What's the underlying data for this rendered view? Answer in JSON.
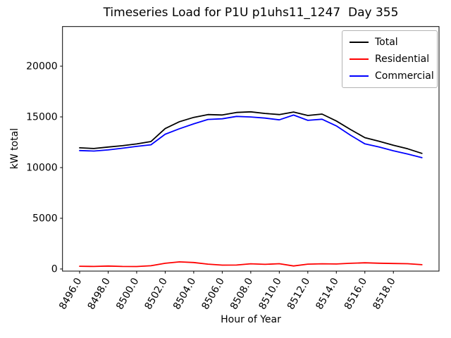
{
  "chart_data": {
    "type": "line",
    "title": "Timeseries Load for P1U p1uhs11_1247  Day 355",
    "xlabel": "Hour of Year",
    "ylabel": "kW total",
    "x": [
      8496,
      8497,
      8498,
      8499,
      8500,
      8501,
      8502,
      8503,
      8504,
      8505,
      8506,
      8507,
      8508,
      8509,
      8510,
      8511,
      8512,
      8513,
      8514,
      8515,
      8516,
      8517,
      8518,
      8519,
      8520
    ],
    "series": [
      {
        "name": "Total",
        "color": "#000000",
        "values": [
          11950,
          11880,
          12030,
          12160,
          12330,
          12570,
          13850,
          14530,
          14950,
          15230,
          15190,
          15440,
          15500,
          15340,
          15230,
          15480,
          15140,
          15280,
          14600,
          13750,
          12950,
          12600,
          12200,
          11850,
          11400
        ]
      },
      {
        "name": "Residential",
        "color": "#ff0000",
        "values": [
          270,
          250,
          290,
          250,
          240,
          320,
          560,
          700,
          640,
          480,
          380,
          390,
          510,
          460,
          520,
          300,
          480,
          510,
          490,
          560,
          610,
          570,
          540,
          520,
          420
        ]
      },
      {
        "name": "Commercial",
        "color": "#0000ff",
        "values": [
          11680,
          11630,
          11740,
          11910,
          12090,
          12250,
          13290,
          13830,
          14310,
          14750,
          14810,
          15050,
          14990,
          14880,
          14710,
          15180,
          14660,
          14770,
          14110,
          13190,
          12340,
          12030,
          11660,
          11330,
          10980
        ]
      }
    ],
    "xticks": [
      8496,
      8498,
      8500,
      8502,
      8504,
      8506,
      8508,
      8510,
      8512,
      8514,
      8516,
      8518
    ],
    "xtick_labels": [
      "8496.0",
      "8498.0",
      "8500.0",
      "8502.0",
      "8504.0",
      "8506.0",
      "8508.0",
      "8510.0",
      "8512.0",
      "8514.0",
      "8516.0",
      "8518.0"
    ],
    "yticks": [
      0,
      5000,
      10000,
      15000,
      20000
    ],
    "ytick_labels": [
      "0",
      "5000",
      "10000",
      "15000",
      "20000"
    ],
    "xlim": [
      8494.8,
      8521.2
    ],
    "ylim": [
      -210,
      23910
    ],
    "grid": false,
    "legend": {
      "position": "upper right"
    },
    "colors": {
      "axes": "#000000",
      "background": "#ffffff",
      "legend_border": "#b3b3b3"
    }
  }
}
